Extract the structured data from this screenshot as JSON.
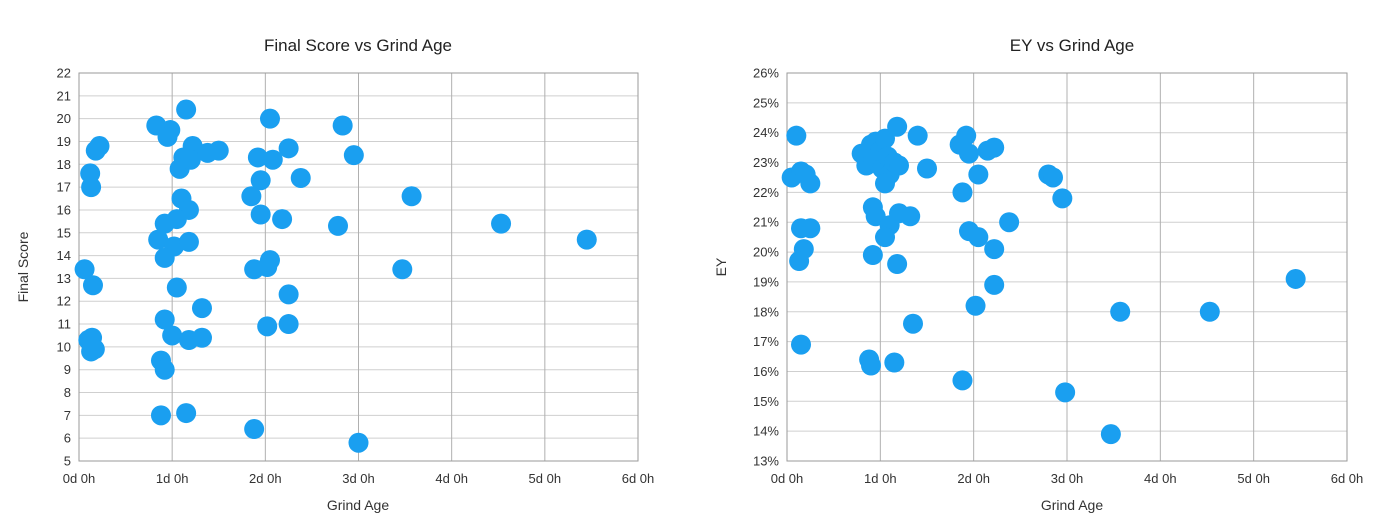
{
  "chart_data": [
    {
      "type": "scatter",
      "title": "Final Score vs Grind Age",
      "xlabel": "Grind Age",
      "ylabel": "Final Score",
      "xlim": [
        0,
        6
      ],
      "ylim": [
        5,
        22
      ],
      "x_ticks": [
        0,
        1,
        2,
        3,
        4,
        5,
        6
      ],
      "x_tick_labels": [
        "0d 0h",
        "1d 0h",
        "2d 0h",
        "3d 0h",
        "4d 0h",
        "5d 0h",
        "6d 0h"
      ],
      "y_ticks": [
        5,
        6,
        7,
        8,
        9,
        10,
        11,
        12,
        13,
        14,
        15,
        16,
        17,
        18,
        19,
        20,
        21,
        22
      ],
      "y_tick_labels": [
        "5",
        "6",
        "7",
        "8",
        "9",
        "10",
        "11",
        "12",
        "13",
        "14",
        "15",
        "16",
        "17",
        "18",
        "19",
        "20",
        "21",
        "22"
      ],
      "grid": true,
      "marker_color": "#1a9ff0",
      "points": [
        {
          "x": 0.06,
          "y": 13.4
        },
        {
          "x": 0.12,
          "y": 17.6
        },
        {
          "x": 0.13,
          "y": 17.0
        },
        {
          "x": 0.18,
          "y": 18.6
        },
        {
          "x": 0.22,
          "y": 18.8
        },
        {
          "x": 0.15,
          "y": 12.7
        },
        {
          "x": 0.1,
          "y": 10.3
        },
        {
          "x": 0.14,
          "y": 10.4
        },
        {
          "x": 0.13,
          "y": 9.8
        },
        {
          "x": 0.17,
          "y": 9.9
        },
        {
          "x": 0.83,
          "y": 19.7
        },
        {
          "x": 0.98,
          "y": 19.5
        },
        {
          "x": 0.95,
          "y": 19.2
        },
        {
          "x": 1.15,
          "y": 20.4
        },
        {
          "x": 1.22,
          "y": 18.8
        },
        {
          "x": 1.12,
          "y": 18.3
        },
        {
          "x": 1.08,
          "y": 17.8
        },
        {
          "x": 1.2,
          "y": 18.2
        },
        {
          "x": 1.38,
          "y": 18.5
        },
        {
          "x": 1.5,
          "y": 18.6
        },
        {
          "x": 1.1,
          "y": 16.5
        },
        {
          "x": 1.18,
          "y": 16.0
        },
        {
          "x": 1.05,
          "y": 15.6
        },
        {
          "x": 0.92,
          "y": 15.4
        },
        {
          "x": 0.85,
          "y": 14.7
        },
        {
          "x": 1.02,
          "y": 14.4
        },
        {
          "x": 1.18,
          "y": 14.6
        },
        {
          "x": 0.92,
          "y": 13.9
        },
        {
          "x": 1.05,
          "y": 12.6
        },
        {
          "x": 1.32,
          "y": 11.7
        },
        {
          "x": 0.92,
          "y": 11.2
        },
        {
          "x": 1.0,
          "y": 10.5
        },
        {
          "x": 1.18,
          "y": 10.3
        },
        {
          "x": 1.32,
          "y": 10.4
        },
        {
          "x": 0.88,
          "y": 9.4
        },
        {
          "x": 0.92,
          "y": 9.0
        },
        {
          "x": 0.88,
          "y": 7.0
        },
        {
          "x": 1.15,
          "y": 7.1
        },
        {
          "x": 2.05,
          "y": 20.0
        },
        {
          "x": 2.25,
          "y": 18.7
        },
        {
          "x": 1.92,
          "y": 18.3
        },
        {
          "x": 2.08,
          "y": 18.2
        },
        {
          "x": 2.38,
          "y": 17.4
        },
        {
          "x": 1.95,
          "y": 17.3
        },
        {
          "x": 1.85,
          "y": 16.6
        },
        {
          "x": 1.95,
          "y": 15.8
        },
        {
          "x": 2.18,
          "y": 15.6
        },
        {
          "x": 2.05,
          "y": 13.8
        },
        {
          "x": 1.88,
          "y": 13.4
        },
        {
          "x": 2.02,
          "y": 13.5
        },
        {
          "x": 2.25,
          "y": 12.3
        },
        {
          "x": 2.02,
          "y": 10.9
        },
        {
          "x": 2.25,
          "y": 11.0
        },
        {
          "x": 1.88,
          "y": 6.4
        },
        {
          "x": 2.83,
          "y": 19.7
        },
        {
          "x": 2.95,
          "y": 18.4
        },
        {
          "x": 2.78,
          "y": 15.3
        },
        {
          "x": 3.0,
          "y": 5.8
        },
        {
          "x": 3.57,
          "y": 16.6
        },
        {
          "x": 3.47,
          "y": 13.4
        },
        {
          "x": 4.53,
          "y": 15.4
        },
        {
          "x": 5.45,
          "y": 14.7
        }
      ]
    },
    {
      "type": "scatter",
      "title": "EY vs Grind Age",
      "xlabel": "Grind Age",
      "ylabel": "EY",
      "xlim": [
        0,
        6
      ],
      "ylim": [
        13,
        26
      ],
      "x_ticks": [
        0,
        1,
        2,
        3,
        4,
        5,
        6
      ],
      "x_tick_labels": [
        "0d 0h",
        "1d 0h",
        "2d 0h",
        "3d 0h",
        "4d 0h",
        "5d 0h",
        "6d 0h"
      ],
      "y_ticks": [
        13,
        14,
        15,
        16,
        17,
        18,
        19,
        20,
        21,
        22,
        23,
        24,
        25,
        26
      ],
      "y_tick_labels": [
        "13%",
        "14%",
        "15%",
        "16%",
        "17%",
        "18%",
        "19%",
        "20%",
        "21%",
        "22%",
        "23%",
        "24%",
        "25%",
        "26%"
      ],
      "grid": true,
      "marker_color": "#1a9ff0",
      "points": [
        {
          "x": 0.05,
          "y": 22.5
        },
        {
          "x": 0.1,
          "y": 23.9
        },
        {
          "x": 0.15,
          "y": 22.7
        },
        {
          "x": 0.2,
          "y": 22.6
        },
        {
          "x": 0.25,
          "y": 22.3
        },
        {
          "x": 0.15,
          "y": 20.8
        },
        {
          "x": 0.25,
          "y": 20.8
        },
        {
          "x": 0.18,
          "y": 20.1
        },
        {
          "x": 0.13,
          "y": 19.7
        },
        {
          "x": 0.15,
          "y": 16.9
        },
        {
          "x": 0.8,
          "y": 23.3
        },
        {
          "x": 0.85,
          "y": 22.9
        },
        {
          "x": 0.9,
          "y": 23.6
        },
        {
          "x": 0.95,
          "y": 23.7
        },
        {
          "x": 1.0,
          "y": 23.4
        },
        {
          "x": 1.05,
          "y": 23.8
        },
        {
          "x": 0.92,
          "y": 23.1
        },
        {
          "x": 1.02,
          "y": 22.8
        },
        {
          "x": 1.08,
          "y": 23.2
        },
        {
          "x": 1.1,
          "y": 22.6
        },
        {
          "x": 1.15,
          "y": 23.0
        },
        {
          "x": 1.2,
          "y": 22.9
        },
        {
          "x": 1.05,
          "y": 22.3
        },
        {
          "x": 1.18,
          "y": 24.2
        },
        {
          "x": 1.4,
          "y": 23.9
        },
        {
          "x": 1.5,
          "y": 22.8
        },
        {
          "x": 0.92,
          "y": 21.5
        },
        {
          "x": 0.95,
          "y": 21.2
        },
        {
          "x": 1.1,
          "y": 20.9
        },
        {
          "x": 1.2,
          "y": 21.3
        },
        {
          "x": 1.32,
          "y": 21.2
        },
        {
          "x": 1.05,
          "y": 20.5
        },
        {
          "x": 0.92,
          "y": 19.9
        },
        {
          "x": 1.18,
          "y": 19.6
        },
        {
          "x": 1.35,
          "y": 17.6
        },
        {
          "x": 0.88,
          "y": 16.4
        },
        {
          "x": 0.9,
          "y": 16.2
        },
        {
          "x": 1.15,
          "y": 16.3
        },
        {
          "x": 1.85,
          "y": 23.6
        },
        {
          "x": 1.92,
          "y": 23.9
        },
        {
          "x": 1.95,
          "y": 23.3
        },
        {
          "x": 2.15,
          "y": 23.4
        },
        {
          "x": 2.22,
          "y": 23.5
        },
        {
          "x": 2.05,
          "y": 22.6
        },
        {
          "x": 1.88,
          "y": 22.0
        },
        {
          "x": 1.95,
          "y": 20.7
        },
        {
          "x": 2.05,
          "y": 20.5
        },
        {
          "x": 2.22,
          "y": 20.1
        },
        {
          "x": 2.38,
          "y": 21.0
        },
        {
          "x": 2.22,
          "y": 18.9
        },
        {
          "x": 2.02,
          "y": 18.2
        },
        {
          "x": 1.88,
          "y": 15.7
        },
        {
          "x": 2.8,
          "y": 22.6
        },
        {
          "x": 2.85,
          "y": 22.5
        },
        {
          "x": 2.95,
          "y": 21.8
        },
        {
          "x": 2.98,
          "y": 15.3
        },
        {
          "x": 3.57,
          "y": 18.0
        },
        {
          "x": 3.47,
          "y": 13.9
        },
        {
          "x": 4.53,
          "y": 18.0
        },
        {
          "x": 5.45,
          "y": 19.1
        }
      ]
    }
  ]
}
